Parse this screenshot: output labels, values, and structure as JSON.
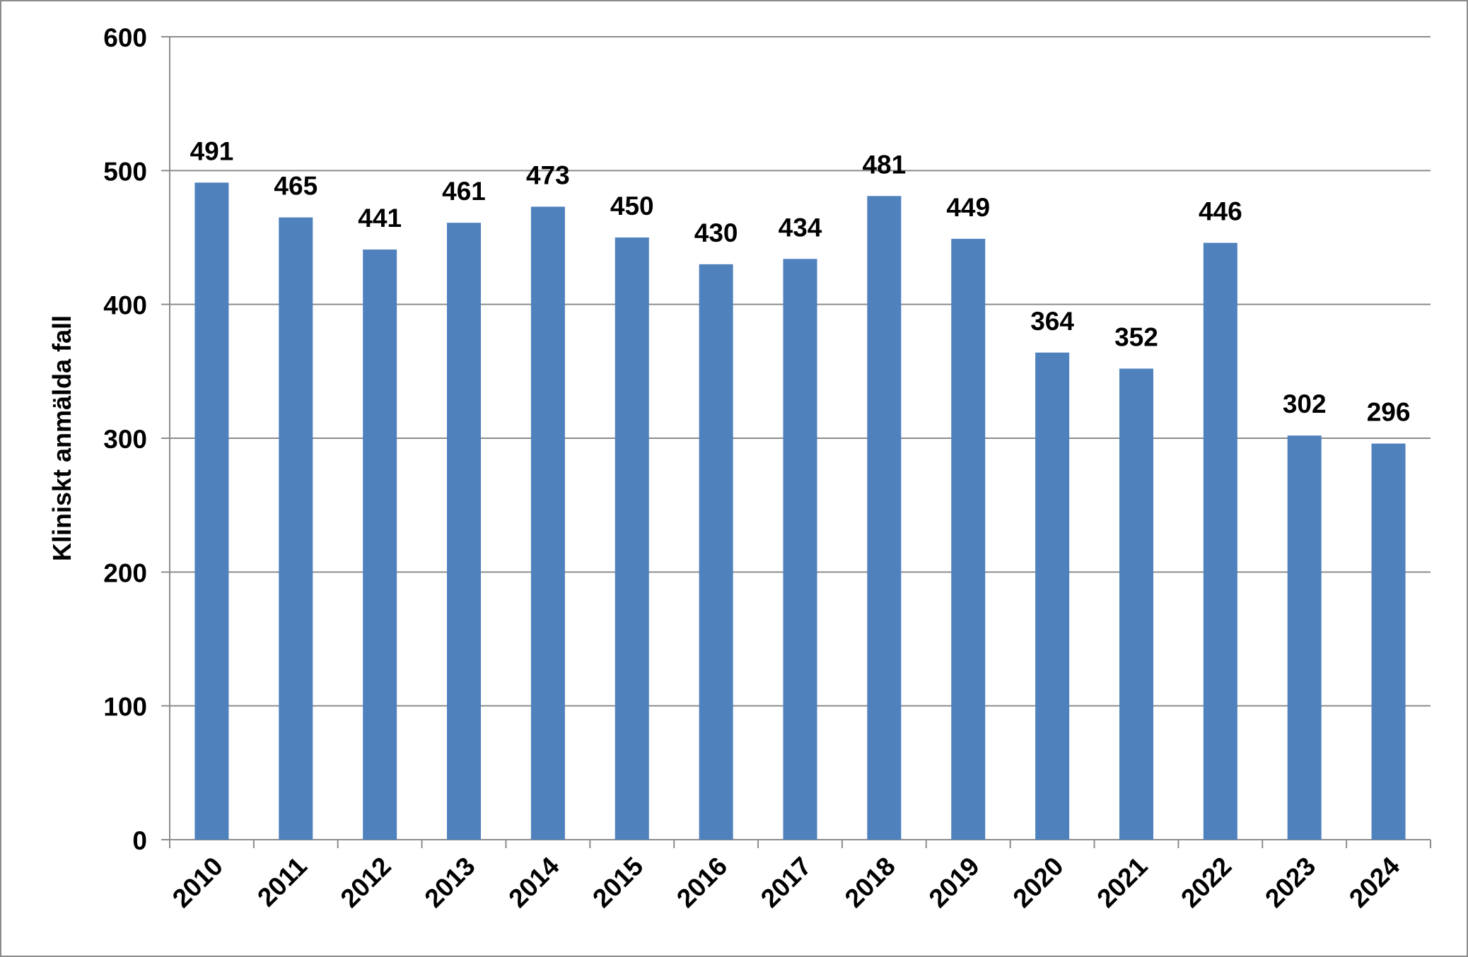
{
  "chart_data": {
    "type": "bar",
    "title": "",
    "xlabel": "",
    "ylabel": "Kliniskt anmälda fall",
    "ylim": [
      0,
      600
    ],
    "yticks": [
      0,
      100,
      200,
      300,
      400,
      500,
      600
    ],
    "grid": true,
    "legend": "none",
    "categories": [
      "2010",
      "2011",
      "2012",
      "2013",
      "2014",
      "2015",
      "2016",
      "2017",
      "2018",
      "2019",
      "2020",
      "2021",
      "2022",
      "2023",
      "2024"
    ],
    "values": [
      491,
      465,
      441,
      461,
      473,
      450,
      430,
      434,
      481,
      449,
      364,
      352,
      446,
      302,
      296
    ],
    "data_labels": true,
    "colors": {
      "bar": "#4f81bd",
      "grid": "#8c8c8c"
    }
  }
}
